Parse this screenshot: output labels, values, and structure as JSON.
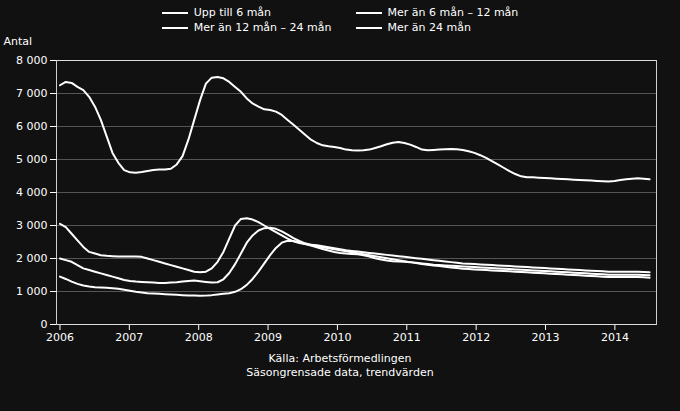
{
  "chart_data": {
    "type": "line",
    "ylabel": "Antal",
    "caption": "Källa: Arbetsförmedlingen\nSäsongrensade data, trendvärden",
    "x": [
      2006.0,
      2006.084158,
      2006.168317,
      2006.252475,
      2006.336634,
      2006.420792,
      2006.50495,
      2006.589109,
      2006.673267,
      2006.757426,
      2006.841584,
      2006.925743,
      2007.009901,
      2007.094059,
      2007.178218,
      2007.262376,
      2007.346535,
      2007.430693,
      2007.514851,
      2007.59901,
      2007.683168,
      2007.767327,
      2007.851485,
      2007.935644,
      2008.019802,
      2008.10396,
      2008.188119,
      2008.272277,
      2008.356436,
      2008.440594,
      2008.524752,
      2008.608911,
      2008.693069,
      2008.777228,
      2008.861386,
      2008.945545,
      2009.029703,
      2009.113861,
      2009.19802,
      2009.282178,
      2009.366337,
      2009.450495,
      2009.534653,
      2009.618812,
      2009.70297,
      2009.787129,
      2009.871287,
      2009.955446,
      2010.039604,
      2010.123762,
      2010.207921,
      2010.292079,
      2010.376238,
      2010.460396,
      2010.544554,
      2010.628713,
      2010.712871,
      2010.79703,
      2010.881188,
      2010.965347,
      2011.049505,
      2011.133663,
      2011.217822,
      2011.30198,
      2011.386139,
      2011.470297,
      2011.554455,
      2011.638614,
      2011.722772,
      2011.806931,
      2011.891089,
      2011.975248,
      2012.059406,
      2012.143564,
      2012.227723,
      2012.311881,
      2012.39604,
      2012.480198,
      2012.564356,
      2012.648515,
      2012.732673,
      2012.816832,
      2012.90099,
      2012.985149,
      2013.069307,
      2013.153465,
      2013.237624,
      2013.321782,
      2013.405941,
      2013.490099,
      2013.574257,
      2013.658416,
      2013.742574,
      2013.826733,
      2013.910891,
      2013.99505,
      2014.079208,
      2014.163366,
      2014.247525,
      2014.331683,
      2014.415842,
      2014.5
    ],
    "series": [
      {
        "name": "Upp till 6 mån",
        "color": "#ffffff",
        "values": [
          7250,
          7350,
          7320,
          7200,
          7100,
          6900,
          6600,
          6200,
          5700,
          5200,
          4900,
          4680,
          4610,
          4600,
          4620,
          4650,
          4680,
          4700,
          4700,
          4720,
          4850,
          5100,
          5600,
          6200,
          6800,
          7300,
          7480,
          7500,
          7460,
          7350,
          7200,
          7050,
          6850,
          6700,
          6600,
          6520,
          6500,
          6450,
          6350,
          6200,
          6050,
          5900,
          5750,
          5600,
          5500,
          5430,
          5400,
          5380,
          5350,
          5300,
          5280,
          5270,
          5280,
          5300,
          5350,
          5400,
          5460,
          5510,
          5530,
          5500,
          5450,
          5380,
          5300,
          5280,
          5290,
          5300,
          5310,
          5320,
          5310,
          5290,
          5250,
          5200,
          5130,
          5050,
          4950,
          4850,
          4750,
          4650,
          4560,
          4490,
          4460,
          4460,
          4450,
          4440,
          4430,
          4420,
          4410,
          4400,
          4390,
          4380,
          4370,
          4360,
          4350,
          4340,
          4330,
          4350,
          4380,
          4400,
          4420,
          4430,
          4420,
          4400
        ]
      },
      {
        "name": "Mer än 6 mån – 12 mån",
        "color": "#ffffff",
        "values": [
          3050,
          2950,
          2750,
          2550,
          2350,
          2200,
          2150,
          2100,
          2080,
          2070,
          2060,
          2060,
          2060,
          2060,
          2050,
          2000,
          1950,
          1900,
          1850,
          1800,
          1750,
          1700,
          1650,
          1600,
          1580,
          1600,
          1700,
          1900,
          2200,
          2600,
          3000,
          3200,
          3220,
          3180,
          3100,
          3000,
          2900,
          2800,
          2700,
          2600,
          2520,
          2470,
          2440,
          2420,
          2400,
          2370,
          2340,
          2310,
          2280,
          2250,
          2230,
          2210,
          2190,
          2170,
          2150,
          2130,
          2110,
          2090,
          2070,
          2050,
          2030,
          2010,
          1990,
          1970,
          1950,
          1930,
          1910,
          1890,
          1870,
          1850,
          1840,
          1830,
          1820,
          1810,
          1800,
          1790,
          1780,
          1770,
          1760,
          1750,
          1740,
          1730,
          1720,
          1710,
          1700,
          1690,
          1680,
          1670,
          1660,
          1650,
          1640,
          1630,
          1620,
          1610,
          1600,
          1600,
          1600,
          1600,
          1600,
          1600,
          1590,
          1580
        ]
      },
      {
        "name": "Mer än 12 mån – 24 mån",
        "color": "#ffffff",
        "values": [
          2000,
          1950,
          1900,
          1800,
          1700,
          1650,
          1600,
          1550,
          1500,
          1450,
          1400,
          1350,
          1320,
          1300,
          1290,
          1280,
          1270,
          1260,
          1260,
          1270,
          1280,
          1300,
          1320,
          1330,
          1310,
          1290,
          1270,
          1280,
          1370,
          1560,
          1830,
          2150,
          2480,
          2700,
          2850,
          2920,
          2930,
          2900,
          2820,
          2720,
          2620,
          2530,
          2460,
          2410,
          2370,
          2340,
          2310,
          2280,
          2250,
          2220,
          2190,
          2160,
          2130,
          2100,
          2070,
          2040,
          2010,
          1980,
          1950,
          1920,
          1890,
          1860,
          1830,
          1810,
          1790,
          1770,
          1750,
          1730,
          1710,
          1690,
          1680,
          1670,
          1660,
          1650,
          1640,
          1630,
          1620,
          1610,
          1600,
          1590,
          1580,
          1570,
          1560,
          1550,
          1540,
          1530,
          1520,
          1510,
          1500,
          1490,
          1480,
          1470,
          1460,
          1450,
          1440,
          1440,
          1440,
          1440,
          1440,
          1440,
          1430,
          1420
        ]
      },
      {
        "name": "Mer än 24 mån",
        "color": "#ffffff",
        "values": [
          1450,
          1380,
          1300,
          1230,
          1180,
          1150,
          1130,
          1120,
          1110,
          1100,
          1080,
          1050,
          1020,
          990,
          970,
          950,
          940,
          930,
          920,
          910,
          900,
          890,
          880,
          880,
          870,
          875,
          890,
          910,
          930,
          950,
          990,
          1070,
          1200,
          1380,
          1600,
          1850,
          2100,
          2320,
          2480,
          2540,
          2530,
          2490,
          2440,
          2390,
          2340,
          2290,
          2240,
          2200,
          2170,
          2150,
          2140,
          2130,
          2100,
          2060,
          2010,
          1970,
          1940,
          1920,
          1910,
          1900,
          1890,
          1870,
          1850,
          1830,
          1810,
          1800,
          1790,
          1780,
          1770,
          1760,
          1750,
          1740,
          1730,
          1720,
          1710,
          1700,
          1690,
          1680,
          1670,
          1660,
          1650,
          1640,
          1630,
          1620,
          1610,
          1600,
          1590,
          1580,
          1570,
          1560,
          1550,
          1540,
          1530,
          1520,
          1510,
          1510,
          1510,
          1510,
          1510,
          1510,
          1500,
          1490
        ]
      }
    ],
    "xlim": [
      2005.95,
      2014.6
    ],
    "xticks": [
      2006,
      2007,
      2008,
      2009,
      2010,
      2011,
      2012,
      2013,
      2014
    ],
    "ylim": [
      0,
      8000
    ],
    "yticks": [
      0,
      {
        "value": 1000,
        "label": "1 000"
      },
      {
        "value": 2000,
        "label": "2 000"
      },
      {
        "value": 3000,
        "label": "3 000"
      },
      {
        "value": 4000,
        "label": "4 000"
      },
      {
        "value": 5000,
        "label": "5 000"
      },
      {
        "value": 6000,
        "label": "6 000"
      },
      {
        "value": 7000,
        "label": "7 000"
      },
      {
        "value": 8000,
        "label": "8 000"
      }
    ],
    "grid": true,
    "legend": "top"
  }
}
